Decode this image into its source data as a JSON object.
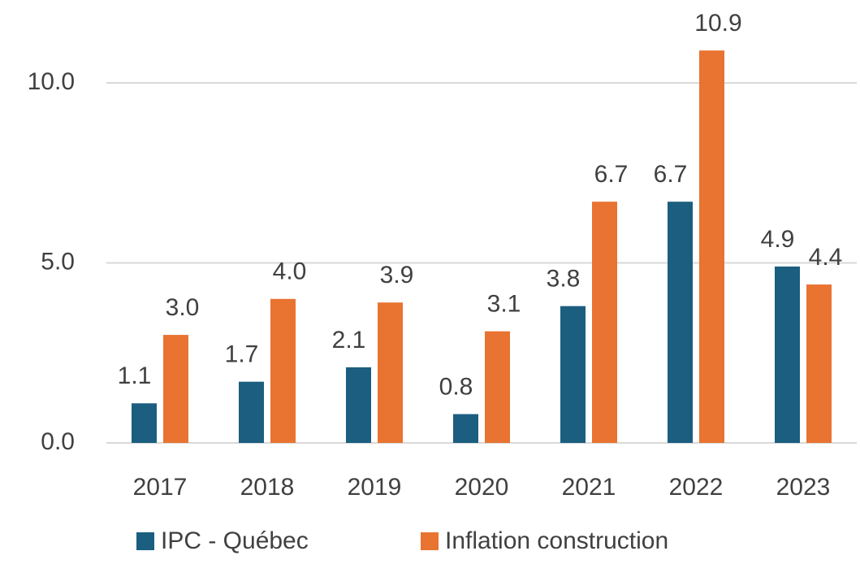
{
  "chart_data": {
    "type": "bar",
    "categories": [
      "2017",
      "2018",
      "2019",
      "2020",
      "2021",
      "2022",
      "2023"
    ],
    "series": [
      {
        "name": "IPC - Québec",
        "color": "#1b5e80",
        "values": [
          1.1,
          1.7,
          2.1,
          0.8,
          3.8,
          6.7,
          4.9
        ],
        "value_labels": [
          "1.1",
          "1.7",
          "2.1",
          "0.8",
          "3.8",
          "6.7",
          "4.9"
        ]
      },
      {
        "name": "Inflation construction",
        "color": "#e97331",
        "values": [
          3.0,
          4.0,
          3.9,
          3.1,
          6.7,
          10.9,
          4.4
        ],
        "value_labels": [
          "3.0",
          "4.0",
          "3.9",
          "3.1",
          "6.7",
          "10.9",
          "4.4"
        ]
      }
    ],
    "ylim": [
      0,
      12
    ],
    "yticks": [
      {
        "value": 0,
        "label": "0.0"
      },
      {
        "value": 5,
        "label": "5.0"
      },
      {
        "value": 10,
        "label": "10.0"
      }
    ],
    "grid": true,
    "legend": "bottom"
  }
}
